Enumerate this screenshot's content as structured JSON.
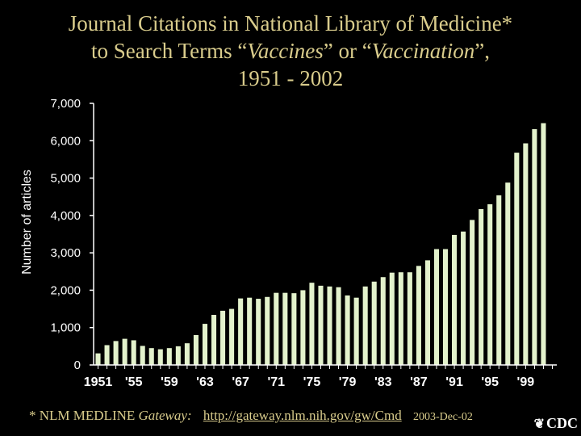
{
  "title": {
    "line1": "Journal Citations in National Library of Medicine*",
    "line2_pre": "to Search Terms “",
    "term1": "Vaccines",
    "line2_mid": "” or “",
    "term2": "Vaccination",
    "line2_post": "”,",
    "line3": "1951 - 2002"
  },
  "footnote": {
    "marker": "*",
    "source_main": "NLM",
    "source_sub": "MEDLINE",
    "gateway": "Gateway:",
    "url": "http://gateway.nlm.nih.gov/gw/Cmd",
    "date": "2003-Dec-02"
  },
  "logo": {
    "text": "CDC",
    "icon": "eagle-icon"
  },
  "colors": {
    "background": "#000000",
    "title": "#d9cc8c",
    "bar": "#e3f2cc",
    "axis": "#ffffff"
  },
  "chart_data": {
    "type": "bar",
    "title": "Journal Citations in National Library of Medicine* to Search Terms “Vaccines” or “Vaccination”, 1951 - 2002",
    "xlabel": "",
    "ylabel": "Number of articles",
    "ylim": [
      0,
      7000
    ],
    "yticks": [
      0,
      1000,
      2000,
      3000,
      4000,
      5000,
      6000,
      7000
    ],
    "ytick_labels": [
      "0",
      "1,000",
      "2,000",
      "3,000",
      "4,000",
      "5,000",
      "6,000",
      "7,000"
    ],
    "grid": false,
    "legend": "none",
    "categories": [
      1951,
      1952,
      1953,
      1954,
      1955,
      1956,
      1957,
      1958,
      1959,
      1960,
      1961,
      1962,
      1963,
      1964,
      1965,
      1966,
      1967,
      1968,
      1969,
      1970,
      1971,
      1972,
      1973,
      1974,
      1975,
      1976,
      1977,
      1978,
      1979,
      1980,
      1981,
      1982,
      1983,
      1984,
      1985,
      1986,
      1987,
      1988,
      1989,
      1990,
      1991,
      1992,
      1993,
      1994,
      1995,
      1996,
      1997,
      1998,
      1999,
      2000,
      2001,
      2002
    ],
    "xtick_labels": [
      {
        "year": 1951,
        "label": "1951"
      },
      {
        "year": 1955,
        "label": "'55"
      },
      {
        "year": 1959,
        "label": "'59"
      },
      {
        "year": 1963,
        "label": "'63"
      },
      {
        "year": 1967,
        "label": "'67"
      },
      {
        "year": 1971,
        "label": "'71"
      },
      {
        "year": 1975,
        "label": "'75"
      },
      {
        "year": 1979,
        "label": "'79"
      },
      {
        "year": 1983,
        "label": "'83"
      },
      {
        "year": 1987,
        "label": "'87"
      },
      {
        "year": 1991,
        "label": "'91"
      },
      {
        "year": 1995,
        "label": "'95"
      },
      {
        "year": 1999,
        "label": "'99"
      }
    ],
    "values": [
      310,
      530,
      640,
      700,
      660,
      510,
      450,
      420,
      450,
      500,
      580,
      800,
      1100,
      1340,
      1450,
      1500,
      1780,
      1800,
      1770,
      1820,
      1930,
      1930,
      1920,
      2000,
      2200,
      2120,
      2100,
      2080,
      1860,
      1800,
      2100,
      2230,
      2350,
      2470,
      2480,
      2480,
      2650,
      2800,
      3100,
      3100,
      3480,
      3570,
      3880,
      4170,
      4300,
      4540,
      4880,
      5680,
      5930,
      6310,
      6470,
      0
    ]
  }
}
